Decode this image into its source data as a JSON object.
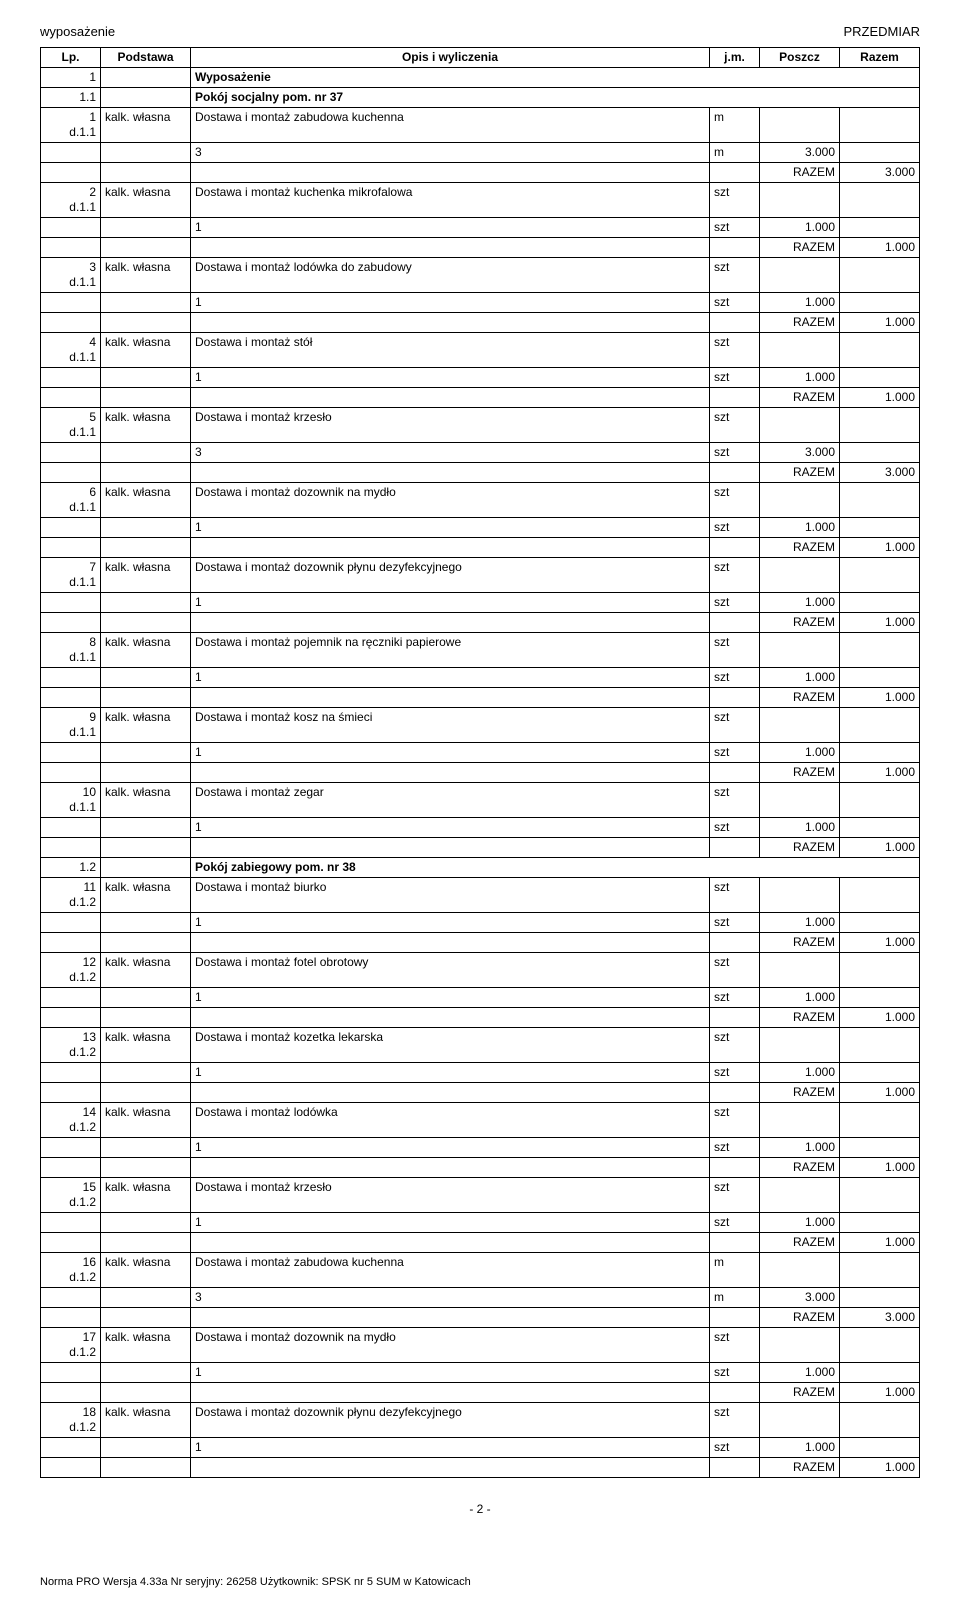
{
  "header": {
    "left": "wyposażenie",
    "right": "PRZEDMIAR"
  },
  "columns": {
    "lp": "Lp.",
    "podstawa": "Podstawa",
    "opis": "Opis i wyliczenia",
    "jm": "j.m.",
    "poszcz": "Poszcz",
    "razem": "Razem"
  },
  "rows": [
    {
      "type": "section",
      "lp": "1",
      "title": "Wyposażenie"
    },
    {
      "type": "section",
      "lp": "1.1",
      "title": "Pokój socjalny pom. nr 37"
    },
    {
      "type": "item",
      "lp": "1",
      "sub": "d.1.1",
      "pod": "kalk. własna",
      "opis": "Dostawa i montaż zabudowa kuchenna",
      "jm": "m"
    },
    {
      "type": "calc",
      "opis": "3",
      "jm": "m",
      "poszcz": "3.000"
    },
    {
      "type": "razem",
      "label": "RAZEM",
      "value": "3.000"
    },
    {
      "type": "item",
      "lp": "2",
      "sub": "d.1.1",
      "pod": "kalk. własna",
      "opis": "Dostawa i montaż kuchenka mikrofalowa",
      "jm": "szt"
    },
    {
      "type": "calc",
      "opis": "1",
      "jm": "szt",
      "poszcz": "1.000"
    },
    {
      "type": "razem",
      "label": "RAZEM",
      "value": "1.000"
    },
    {
      "type": "item",
      "lp": "3",
      "sub": "d.1.1",
      "pod": "kalk. własna",
      "opis": "Dostawa i montaż lodówka do zabudowy",
      "jm": "szt"
    },
    {
      "type": "calc",
      "opis": "1",
      "jm": "szt",
      "poszcz": "1.000"
    },
    {
      "type": "razem",
      "label": "RAZEM",
      "value": "1.000"
    },
    {
      "type": "item",
      "lp": "4",
      "sub": "d.1.1",
      "pod": "kalk. własna",
      "opis": "Dostawa i montaż stół",
      "jm": "szt"
    },
    {
      "type": "calc",
      "opis": "1",
      "jm": "szt",
      "poszcz": "1.000"
    },
    {
      "type": "razem",
      "label": "RAZEM",
      "value": "1.000"
    },
    {
      "type": "item",
      "lp": "5",
      "sub": "d.1.1",
      "pod": "kalk. własna",
      "opis": "Dostawa i montaż krzesło",
      "jm": "szt"
    },
    {
      "type": "calc",
      "opis": "3",
      "jm": "szt",
      "poszcz": "3.000"
    },
    {
      "type": "razem",
      "label": "RAZEM",
      "value": "3.000"
    },
    {
      "type": "item",
      "lp": "6",
      "sub": "d.1.1",
      "pod": "kalk. własna",
      "opis": "Dostawa i montaż dozownik na mydło",
      "jm": "szt"
    },
    {
      "type": "calc",
      "opis": "1",
      "jm": "szt",
      "poszcz": "1.000"
    },
    {
      "type": "razem",
      "label": "RAZEM",
      "value": "1.000"
    },
    {
      "type": "item",
      "lp": "7",
      "sub": "d.1.1",
      "pod": "kalk. własna",
      "opis": "Dostawa i montaż dozownik płynu dezyfekcyjnego",
      "jm": "szt"
    },
    {
      "type": "calc",
      "opis": "1",
      "jm": "szt",
      "poszcz": "1.000"
    },
    {
      "type": "razem",
      "label": "RAZEM",
      "value": "1.000"
    },
    {
      "type": "item",
      "lp": "8",
      "sub": "d.1.1",
      "pod": "kalk. własna",
      "opis": "Dostawa i montaż pojemnik na ręczniki papierowe",
      "jm": "szt"
    },
    {
      "type": "calc",
      "opis": "1",
      "jm": "szt",
      "poszcz": "1.000"
    },
    {
      "type": "razem",
      "label": "RAZEM",
      "value": "1.000"
    },
    {
      "type": "item",
      "lp": "9",
      "sub": "d.1.1",
      "pod": "kalk. własna",
      "opis": "Dostawa i montaż kosz na śmieci",
      "jm": "szt"
    },
    {
      "type": "calc",
      "opis": "1",
      "jm": "szt",
      "poszcz": "1.000"
    },
    {
      "type": "razem",
      "label": "RAZEM",
      "value": "1.000"
    },
    {
      "type": "item",
      "lp": "10",
      "sub": "d.1.1",
      "pod": "kalk. własna",
      "opis": "Dostawa i montaż zegar",
      "jm": "szt"
    },
    {
      "type": "calc",
      "opis": "1",
      "jm": "szt",
      "poszcz": "1.000"
    },
    {
      "type": "razem",
      "label": "RAZEM",
      "value": "1.000"
    },
    {
      "type": "section",
      "lp": "1.2",
      "title": "Pokój zabiegowy pom. nr 38"
    },
    {
      "type": "item",
      "lp": "11",
      "sub": "d.1.2",
      "pod": "kalk. własna",
      "opis": "Dostawa i montaż biurko",
      "jm": "szt"
    },
    {
      "type": "calc",
      "opis": "1",
      "jm": "szt",
      "poszcz": "1.000"
    },
    {
      "type": "razem",
      "label": "RAZEM",
      "value": "1.000"
    },
    {
      "type": "item",
      "lp": "12",
      "sub": "d.1.2",
      "pod": "kalk. własna",
      "opis": "Dostawa i montaż fotel obrotowy",
      "jm": "szt"
    },
    {
      "type": "calc",
      "opis": "1",
      "jm": "szt",
      "poszcz": "1.000"
    },
    {
      "type": "razem",
      "label": "RAZEM",
      "value": "1.000"
    },
    {
      "type": "item",
      "lp": "13",
      "sub": "d.1.2",
      "pod": "kalk. własna",
      "opis": "Dostawa i montaż kozetka lekarska",
      "jm": "szt"
    },
    {
      "type": "calc",
      "opis": "1",
      "jm": "szt",
      "poszcz": "1.000"
    },
    {
      "type": "razem",
      "label": "RAZEM",
      "value": "1.000"
    },
    {
      "type": "item",
      "lp": "14",
      "sub": "d.1.2",
      "pod": "kalk. własna",
      "opis": "Dostawa i montaż lodówka",
      "jm": "szt"
    },
    {
      "type": "calc",
      "opis": "1",
      "jm": "szt",
      "poszcz": "1.000"
    },
    {
      "type": "razem",
      "label": "RAZEM",
      "value": "1.000"
    },
    {
      "type": "item",
      "lp": "15",
      "sub": "d.1.2",
      "pod": "kalk. własna",
      "opis": "Dostawa i montaż krzesło",
      "jm": "szt"
    },
    {
      "type": "calc",
      "opis": "1",
      "jm": "szt",
      "poszcz": "1.000"
    },
    {
      "type": "razem",
      "label": "RAZEM",
      "value": "1.000"
    },
    {
      "type": "item",
      "lp": "16",
      "sub": "d.1.2",
      "pod": "kalk. własna",
      "opis": "Dostawa i montaż zabudowa kuchenna",
      "jm": "m"
    },
    {
      "type": "calc",
      "opis": "3",
      "jm": "m",
      "poszcz": "3.000"
    },
    {
      "type": "razem",
      "label": "RAZEM",
      "value": "3.000"
    },
    {
      "type": "item",
      "lp": "17",
      "sub": "d.1.2",
      "pod": "kalk. własna",
      "opis": "Dostawa i montaż dozownik na mydło",
      "jm": "szt"
    },
    {
      "type": "calc",
      "opis": "1",
      "jm": "szt",
      "poszcz": "1.000"
    },
    {
      "type": "razem",
      "label": "RAZEM",
      "value": "1.000"
    },
    {
      "type": "item",
      "lp": "18",
      "sub": "d.1.2",
      "pod": "kalk. własna",
      "opis": "Dostawa i montaż dozownik płynu dezyfekcyjnego",
      "jm": "szt"
    },
    {
      "type": "calc",
      "opis": "1",
      "jm": "szt",
      "poszcz": "1.000"
    },
    {
      "type": "razem",
      "label": "RAZEM",
      "value": "1.000"
    }
  ],
  "footer": {
    "pageNum": "- 2 -",
    "appInfo": "Norma PRO Wersja 4.33a Nr seryjny: 26258 Użytkownik: SPSK nr 5 SUM w Katowicach"
  }
}
